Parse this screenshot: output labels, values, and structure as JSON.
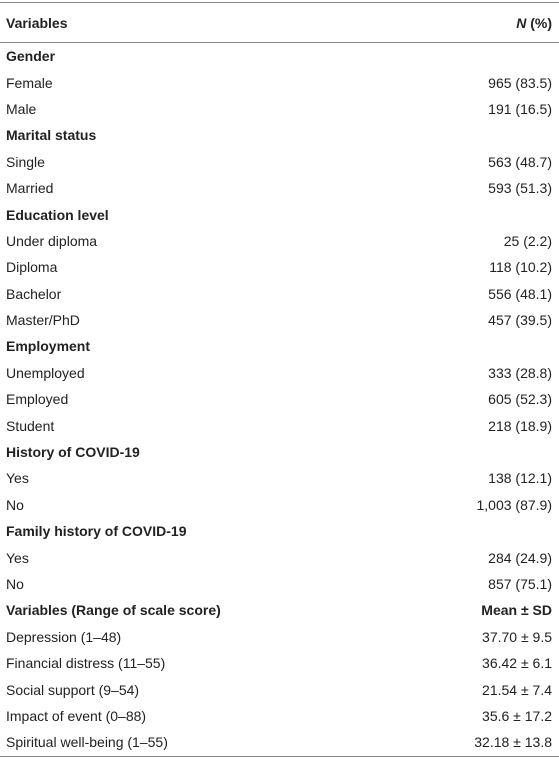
{
  "table": {
    "header": {
      "label": "Variables",
      "value": [
        "N",
        " (%)"
      ]
    },
    "rows": [
      {
        "label": "Gender",
        "bold": true
      },
      {
        "label": "Female",
        "value": "965 (83.5)"
      },
      {
        "label": "Male",
        "value": "191 (16.5)"
      },
      {
        "label": "Marital status",
        "bold": true
      },
      {
        "label": "Single",
        "value": "563 (48.7)"
      },
      {
        "label": "Married",
        "value": "593 (51.3)"
      },
      {
        "label": "Education level",
        "bold": true
      },
      {
        "label": "Under diploma",
        "value": "25 (2.2)"
      },
      {
        "label": "Diploma",
        "value": "118 (10.2)"
      },
      {
        "label": "Bachelor",
        "value": "556 (48.1)"
      },
      {
        "label": "Master/PhD",
        "value": "457 (39.5)"
      },
      {
        "label": "Employment",
        "bold": true
      },
      {
        "label": "Unemployed",
        "value": "333 (28.8)"
      },
      {
        "label": "Employed",
        "value": "605 (52.3)"
      },
      {
        "label": "Student",
        "value": "218 (18.9)"
      },
      {
        "label": "History of COVID-19",
        "bold": true
      },
      {
        "label": "Yes",
        "value": "138 (12.1)"
      },
      {
        "label": "No",
        "value": "1,003 (87.9)"
      },
      {
        "label": "Family history of COVID-19",
        "bold": true
      },
      {
        "label": "Yes",
        "value": "284 (24.9)"
      },
      {
        "label": "No",
        "value": "857 (75.1)"
      },
      {
        "label": "Variables (Range of scale score)",
        "value": "Mean ± SD",
        "bold": true
      },
      {
        "label": "Depression (1–48)",
        "value": "37.70 ± 9.5"
      },
      {
        "label": "Financial distress (11–55)",
        "value": "36.42 ± 6.1"
      },
      {
        "label": "Social support (9–54)",
        "value": "21.54 ± 7.4"
      },
      {
        "label": "Impact of event (0–88)",
        "value": "35.6 ± 17.2"
      },
      {
        "label": "Spiritual well-being (1–55)",
        "value": "32.18 ± 13.8"
      }
    ]
  }
}
